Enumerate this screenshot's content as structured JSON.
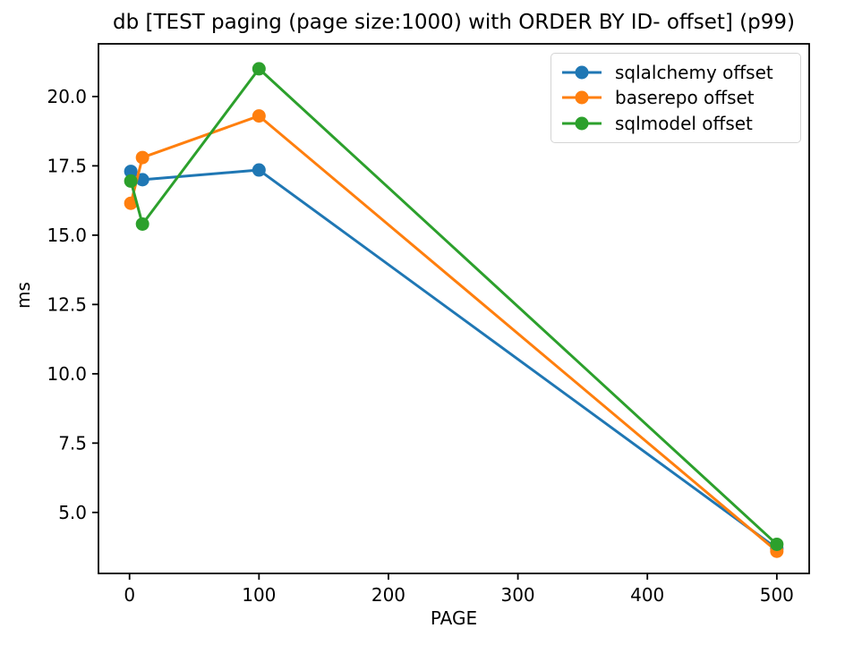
{
  "chart_data": {
    "type": "line",
    "title": "db [TEST paging (page size:1000) with ORDER BY ID- offset] (p99)",
    "xlabel": "PAGE",
    "ylabel": "ms",
    "x": [
      1,
      10,
      100,
      500
    ],
    "series": [
      {
        "name": "sqlalchemy offset",
        "color": "#1f77b4",
        "values": [
          17.3,
          17.0,
          17.35,
          3.7
        ]
      },
      {
        "name": "baserepo offset",
        "color": "#ff7f0e",
        "values": [
          16.15,
          17.8,
          19.3,
          3.6
        ]
      },
      {
        "name": "sqlmodel offset",
        "color": "#2ca02c",
        "values": [
          16.95,
          15.4,
          21.0,
          3.85
        ]
      }
    ],
    "x_ticks": [
      0,
      100,
      200,
      300,
      400,
      500
    ],
    "y_ticks": [
      5.0,
      7.5,
      10.0,
      12.5,
      15.0,
      17.5,
      20.0
    ],
    "xlim": [
      -24,
      525
    ],
    "ylim": [
      2.8,
      21.9
    ],
    "grid": false,
    "legend_position": "upper right",
    "marker": "o",
    "axis_color": "#000000",
    "background_color": "#ffffff"
  }
}
